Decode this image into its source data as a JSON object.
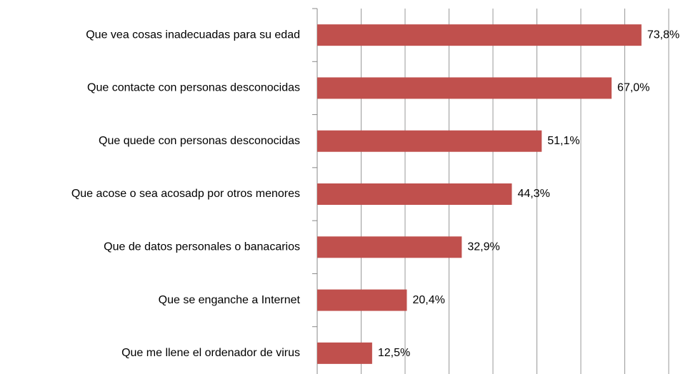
{
  "chart_data": {
    "type": "barh",
    "categories": [
      "Que vea cosas inadecuadas para su edad",
      "Que contacte con personas desconocidas",
      "Que quede con personas desconocidas",
      "Que acose o sea acosadp por otros menores",
      "Que de datos personales o banacarios",
      "Que se enganche a Internet",
      "Que me llene el ordenador de virus"
    ],
    "values": [
      73.8,
      67.0,
      51.1,
      44.3,
      32.9,
      20.4,
      12.5
    ],
    "value_labels": [
      "73,8%",
      "67,0%",
      "51,1%",
      "44,3%",
      "32,9%",
      "20,4%",
      "12,5%"
    ],
    "color": "#c0504d",
    "xlim": [
      0,
      80
    ],
    "xticks": [
      0,
      10,
      20,
      30,
      40,
      50,
      60,
      70,
      80
    ],
    "grid": true
  }
}
